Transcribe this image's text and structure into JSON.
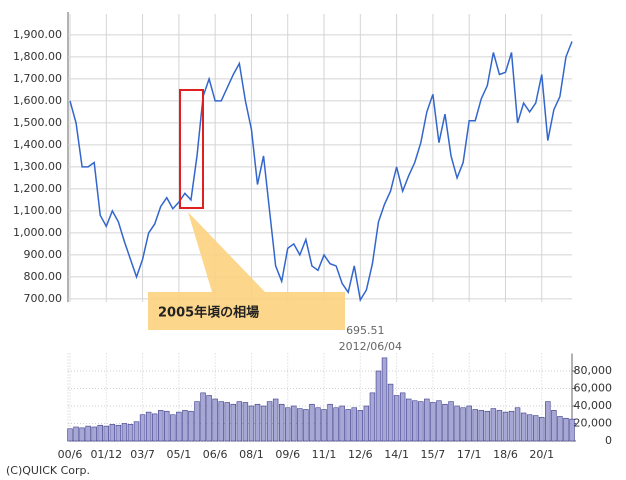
{
  "chart_data": [
    {
      "type": "line",
      "color": "#3366cc",
      "values": [
        1600,
        1500,
        1300,
        1300,
        1320,
        1080,
        1030,
        1100,
        1050,
        960,
        880,
        800,
        880,
        1000,
        1040,
        1120,
        1160,
        1110,
        1140,
        1180,
        1150,
        1350,
        1620,
        1700,
        1600,
        1600,
        1660,
        1720,
        1770,
        1600,
        1470,
        1220,
        1350,
        1100,
        850,
        780,
        930,
        950,
        900,
        970,
        850,
        830,
        900,
        860,
        850,
        770,
        730,
        850,
        695.51,
        740,
        860,
        1050,
        1130,
        1190,
        1300,
        1190,
        1260,
        1320,
        1410,
        1550,
        1630,
        1410,
        1540,
        1350,
        1250,
        1320,
        1510,
        1510,
        1610,
        1670,
        1820,
        1720,
        1730,
        1820,
        1500,
        1590,
        1550,
        1590,
        1720,
        1420,
        1560,
        1620,
        1800,
        1870
      ],
      "ylim": [
        686,
        1995
      ],
      "yticks": [
        {
          "value": 700,
          "label": "700.00"
        },
        {
          "value": 800,
          "label": "800.00"
        },
        {
          "value": 900,
          "label": "900.00"
        },
        {
          "value": 1000,
          "label": "1,000.00"
        },
        {
          "value": 1100,
          "label": "1,100.00"
        },
        {
          "value": 1200,
          "label": "1,200.00"
        },
        {
          "value": 1300,
          "label": "1,300.00"
        },
        {
          "value": 1400,
          "label": "1,400.00"
        },
        {
          "value": 1500,
          "label": "1,500.00"
        },
        {
          "value": 1600,
          "label": "1,600.00"
        },
        {
          "value": 1700,
          "label": "1,700.00"
        },
        {
          "value": 1800,
          "label": "1,800.00"
        },
        {
          "value": 1900,
          "label": "1,900.00"
        }
      ],
      "grid": true,
      "annotations": [
        {
          "text": "2005年頃の相場"
        },
        {
          "value": 695.51,
          "date": "2012/06/04"
        }
      ]
    },
    {
      "type": "bar",
      "color": "#a7a7d6",
      "categories": [
        "00/6",
        null,
        null,
        null,
        null,
        null,
        "01/12",
        null,
        null,
        null,
        null,
        null,
        "03/7",
        null,
        null,
        null,
        null,
        null,
        "05/1",
        null,
        null,
        null,
        null,
        null,
        "06/6",
        null,
        null,
        null,
        null,
        null,
        "08/1",
        null,
        null,
        null,
        null,
        null,
        "09/6",
        null,
        null,
        null,
        null,
        null,
        "11/1",
        null,
        null,
        null,
        null,
        null,
        "12/6",
        null,
        null,
        null,
        null,
        null,
        "14/1",
        null,
        null,
        null,
        null,
        null,
        "15/7",
        null,
        null,
        null,
        null,
        null,
        "17/1",
        null,
        null,
        null,
        null,
        null,
        "18/6",
        null,
        null,
        null,
        null,
        null,
        "20/1",
        null,
        null,
        null,
        null,
        null
      ],
      "values": [
        14000,
        16000,
        15000,
        17000,
        16000,
        18000,
        17000,
        19000,
        18000,
        20000,
        19000,
        22000,
        30000,
        33000,
        31000,
        35000,
        34000,
        30000,
        33000,
        35000,
        34000,
        45000,
        55000,
        52000,
        48000,
        45000,
        44000,
        42000,
        45000,
        44000,
        40000,
        42000,
        40000,
        45000,
        48000,
        42000,
        38000,
        40000,
        37000,
        36000,
        42000,
        38000,
        36000,
        42000,
        38000,
        40000,
        36000,
        38000,
        35000,
        40000,
        55000,
        80000,
        95000,
        65000,
        52000,
        55000,
        48000,
        46000,
        45000,
        48000,
        44000,
        46000,
        42000,
        45000,
        40000,
        38000,
        40000,
        36000,
        35000,
        34000,
        37000,
        35000,
        33000,
        34000,
        38000,
        32000,
        30000,
        29000,
        27000,
        45000,
        35000,
        28000,
        26000,
        25000
      ],
      "ylim": [
        0,
        100000
      ],
      "yticks": [
        0,
        {
          "value": 20000,
          "label": "20,000"
        },
        {
          "value": 40000,
          "label": "40,000"
        },
        {
          "value": 60000,
          "label": "60,000"
        },
        {
          "value": 80000,
          "label": "80,000"
        }
      ],
      "grid": true
    },
    {
      "type": "note",
      "text": "(C)QUICK Corp."
    }
  ]
}
